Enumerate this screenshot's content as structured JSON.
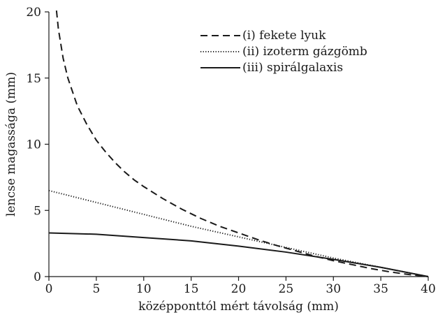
{
  "chart_data": {
    "type": "line",
    "xlabel": "középponttól mért távolság (mm)",
    "ylabel": "lencse magassága (mm)",
    "xlim": [
      0,
      40
    ],
    "ylim": [
      0,
      20
    ],
    "xticks": [
      0,
      5,
      10,
      15,
      20,
      25,
      30,
      35,
      40
    ],
    "yticks": [
      0,
      5,
      10,
      15,
      20
    ],
    "grid": false,
    "legend_position": "top-right",
    "series": [
      {
        "name": "(i) fekete lyuk",
        "style": "dashed",
        "color": "#1a1a1a",
        "x": [
          0.8,
          1,
          1.5,
          2,
          3,
          4,
          5,
          6,
          7,
          8,
          9,
          10,
          12,
          14,
          16,
          18,
          20,
          22,
          24,
          26,
          28,
          30,
          32,
          34,
          36,
          38,
          40
        ],
        "y": [
          20.1,
          18.7,
          16.5,
          15.0,
          12.9,
          11.5,
          10.3,
          9.4,
          8.6,
          7.9,
          7.3,
          6.8,
          5.9,
          5.1,
          4.4,
          3.8,
          3.3,
          2.8,
          2.35,
          1.95,
          1.55,
          1.2,
          0.9,
          0.6,
          0.35,
          0.15,
          0.0
        ]
      },
      {
        "name": "(ii) izoterm gázgömb",
        "style": "dotted",
        "color": "#1a1a1a",
        "x": [
          0,
          5,
          10,
          15,
          20,
          25,
          30,
          35,
          40
        ],
        "y": [
          6.5,
          5.6,
          4.7,
          3.8,
          3.0,
          2.2,
          1.4,
          0.7,
          0.0
        ]
      },
      {
        "name": "(iii) spirálgalaxis",
        "style": "solid",
        "color": "#1a1a1a",
        "x": [
          0,
          5,
          10,
          15,
          20,
          25,
          30,
          35,
          40
        ],
        "y": [
          3.3,
          3.2,
          2.95,
          2.7,
          2.3,
          1.85,
          1.3,
          0.7,
          0.0
        ]
      }
    ]
  }
}
